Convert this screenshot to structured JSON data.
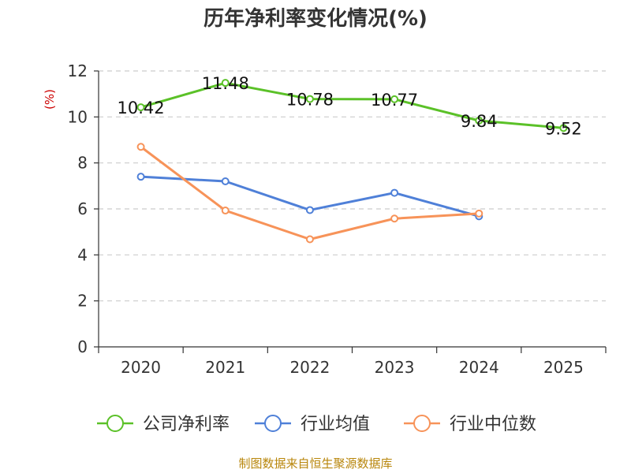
{
  "chart_data": {
    "type": "line",
    "title": "历年净利率变化情况(%)",
    "ylabel": "(%)",
    "xlabel": "",
    "categories": [
      "2020",
      "2021",
      "2022",
      "2023",
      "2024",
      "2025"
    ],
    "ylim": [
      0,
      12
    ],
    "yticks": [
      0,
      2,
      4,
      6,
      8,
      10,
      12
    ],
    "grid": true,
    "legend_position": "bottom",
    "series": [
      {
        "name": "公司净利率",
        "color": "#5bc128",
        "values": [
          10.42,
          11.48,
          10.78,
          10.77,
          9.84,
          9.52
        ],
        "labels": [
          "10.42",
          "11.48",
          "10.78",
          "10.77",
          "9.84",
          "9.52"
        ]
      },
      {
        "name": "行业均值",
        "color": "#4f80d8",
        "values": [
          7.4,
          7.2,
          5.95,
          6.7,
          5.68,
          null
        ]
      },
      {
        "name": "行业中位数",
        "color": "#f79359",
        "values": [
          8.7,
          5.93,
          4.68,
          5.58,
          5.8,
          null
        ]
      }
    ]
  },
  "footer": {
    "source": "制图数据来自恒生聚源数据库"
  }
}
